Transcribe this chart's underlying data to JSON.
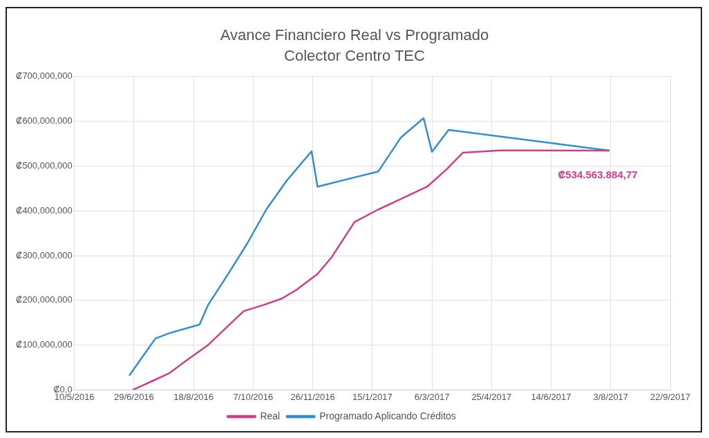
{
  "chart_data": {
    "type": "line",
    "title": "Avance Financiero Real vs Programado",
    "subtitle": "Colector Centro TEC",
    "series": [
      {
        "name": "Real",
        "color": "#d63b85",
        "x": [
          "2016-06-28",
          "2016-07-17",
          "2016-07-29",
          "2016-08-10",
          "2016-08-30",
          "2016-09-29",
          "2016-10-15",
          "2016-10-31",
          "2016-11-12",
          "2016-11-30",
          "2016-12-12",
          "2016-12-31",
          "2017-01-20",
          "2017-02-10",
          "2017-03-02",
          "2017-03-18",
          "2017-04-01",
          "2017-05-02",
          "2017-08-02"
        ],
        "values": [
          0,
          23000000,
          38000000,
          62000000,
          100000000,
          176000000,
          189000000,
          204000000,
          223000000,
          259000000,
          297000000,
          375000000,
          403000000,
          429000000,
          454000000,
          492000000,
          530000000,
          535000000,
          534563884.77
        ]
      },
      {
        "name": "Programado Aplicando Créditos",
        "color": "#2f8fd6",
        "x": [
          "2016-06-25",
          "2016-07-17",
          "2016-07-29",
          "2016-08-23",
          "2016-08-30",
          "2016-09-16",
          "2016-10-02",
          "2016-10-18",
          "2016-11-04",
          "2016-11-25",
          "2016-11-30",
          "2017-01-20",
          "2017-02-08",
          "2017-02-27",
          "2017-03-06",
          "2017-03-20",
          "2017-08-02"
        ],
        "values": [
          32000000,
          115000000,
          127000000,
          146000000,
          189000000,
          259000000,
          327000000,
          403000000,
          467000000,
          533000000,
          454000000,
          488000000,
          564000000,
          607000000,
          532000000,
          581000000,
          534563884.77
        ]
      }
    ],
    "xlim": [
      "2016-05-10",
      "2017-09-22"
    ],
    "xticks": [
      {
        "value": "2016-05-10",
        "label": "10/5/2016"
      },
      {
        "value": "2016-06-29",
        "label": "29/6/2016"
      },
      {
        "value": "2016-08-18",
        "label": "18/8/2016"
      },
      {
        "value": "2016-10-07",
        "label": "7/10/2016"
      },
      {
        "value": "2016-11-26",
        "label": "26/11/2016"
      },
      {
        "value": "2017-01-15",
        "label": "15/1/2017"
      },
      {
        "value": "2017-03-06",
        "label": "6/3/2017"
      },
      {
        "value": "2017-04-25",
        "label": "25/4/2017"
      },
      {
        "value": "2017-06-14",
        "label": "14/6/2017"
      },
      {
        "value": "2017-08-03",
        "label": "3/8/2017"
      },
      {
        "value": "2017-09-22",
        "label": "22/9/2017"
      }
    ],
    "ylim": [
      0,
      700000000
    ],
    "yticks": [
      {
        "value": 0,
        "label": "₡0,0"
      },
      {
        "value": 100000000,
        "label": "₡100,000,000"
      },
      {
        "value": 200000000,
        "label": "₡200,000,000"
      },
      {
        "value": 300000000,
        "label": "₡300,000,000"
      },
      {
        "value": 400000000,
        "label": "₡400,000,000"
      },
      {
        "value": 500000000,
        "label": "₡500,000,000"
      },
      {
        "value": 600000000,
        "label": "₡600,000,000"
      },
      {
        "value": 700000000,
        "label": "₡700,000,000"
      }
    ],
    "annotations": [
      {
        "text": "₡534.563.884,77",
        "x": "2017-08-02",
        "y": 534563884.77
      }
    ],
    "grid": true,
    "legend": "bottom",
    "marker": "none",
    "line_style": "solid"
  }
}
